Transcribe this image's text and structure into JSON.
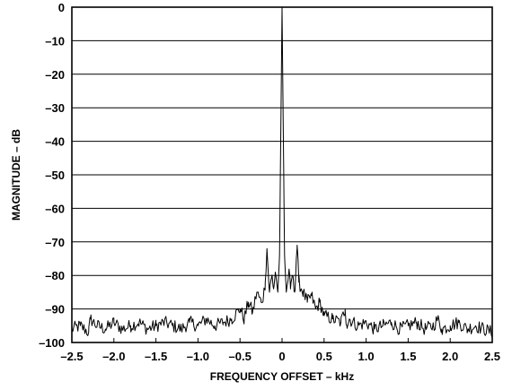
{
  "chart_data": {
    "type": "line",
    "title": "",
    "xlabel": "FREQUENCY OFFSET – kHz",
    "ylabel": "MAGNITUDE – dB",
    "xlim": [
      -2.5,
      2.5
    ],
    "ylim": [
      -100,
      0
    ],
    "grid": "horizontal",
    "x_ticks": [
      -2.5,
      -2.0,
      -1.5,
      -1.0,
      -0.5,
      0,
      0.5,
      1.0,
      1.5,
      2.0,
      2.5
    ],
    "x_tick_labels": [
      "–2.5",
      "–2.0",
      "–1.5",
      "–1.0",
      "–0.5",
      "0",
      "0.5",
      "1.0",
      "1.5",
      "2.0",
      "2.5"
    ],
    "y_ticks": [
      0,
      -10,
      -20,
      -30,
      -40,
      -50,
      -60,
      -70,
      -80,
      -90,
      -100
    ],
    "y_tick_labels": [
      "0",
      "–10",
      "–20",
      "–30",
      "–40",
      "–50",
      "–60",
      "–70",
      "–80",
      "–90",
      "–100"
    ],
    "series": [
      {
        "x": [
          -2.5,
          -2.4,
          -2.3,
          -2.28,
          -2.2,
          -2.1,
          -2.0,
          -1.9,
          -1.8,
          -1.7,
          -1.6,
          -1.5,
          -1.4,
          -1.3,
          -1.2,
          -1.1,
          -1.0,
          -0.9,
          -0.8,
          -0.7,
          -0.6,
          -0.5,
          -0.45,
          -0.4,
          -0.35,
          -0.3,
          -0.25,
          -0.22,
          -0.2,
          -0.18,
          -0.15,
          -0.12,
          -0.1,
          -0.08,
          -0.05,
          -0.03,
          -0.02,
          0,
          0.02,
          0.03,
          0.05,
          0.08,
          0.1,
          0.12,
          0.15,
          0.17,
          0.18,
          0.2,
          0.23,
          0.25,
          0.3,
          0.35,
          0.4,
          0.45,
          0.5,
          0.6,
          0.7,
          0.75,
          0.77,
          0.8,
          0.9,
          1.0,
          1.1,
          1.2,
          1.3,
          1.4,
          1.5,
          1.6,
          1.7,
          1.8,
          1.85,
          1.9,
          2.0,
          2.1,
          2.2,
          2.3,
          2.4,
          2.5
        ],
        "values": [
          -96,
          -95,
          -97,
          -93,
          -95,
          -96,
          -94,
          -96,
          -95,
          -94,
          -96,
          -95,
          -94,
          -95,
          -96,
          -94,
          -95,
          -93,
          -95,
          -94,
          -93,
          -90,
          -93,
          -88,
          -91,
          -85,
          -88,
          -86,
          -82,
          -72,
          -85,
          -80,
          -84,
          -79,
          -85,
          -74,
          -50,
          0,
          -50,
          -74,
          -85,
          -79,
          -84,
          -80,
          -85,
          -75,
          -71,
          -82,
          -84,
          -85,
          -88,
          -86,
          -90,
          -88,
          -92,
          -93,
          -94,
          -90,
          -95,
          -93,
          -95,
          -94,
          -96,
          -95,
          -94,
          -96,
          -95,
          -94,
          -96,
          -95,
          -93,
          -96,
          -95,
          -94,
          -96,
          -95,
          -96,
          -97
        ]
      }
    ]
  }
}
